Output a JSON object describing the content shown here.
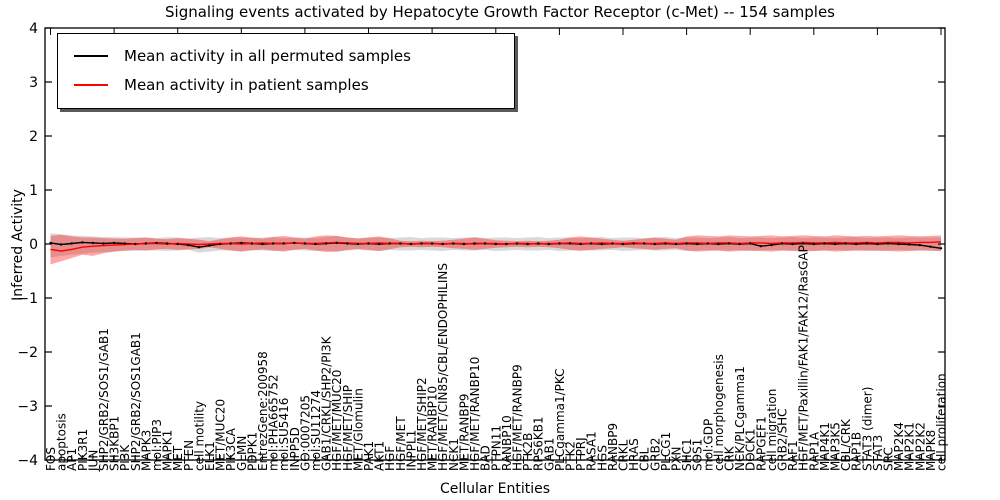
{
  "chart_data": {
    "type": "line",
    "title": "Signaling events activated by Hepatocyte Growth Factor Receptor (c-Met) -- 154 samples",
    "xlabel": "Cellular Entities",
    "ylabel": "Inferred Activity",
    "ylim": [
      -4,
      4
    ],
    "yticks": [
      "4",
      "3",
      "2",
      "1",
      "0",
      "−1",
      "−2",
      "−3",
      "−4"
    ],
    "ytick_values": [
      4,
      3,
      2,
      1,
      0,
      -1,
      -2,
      -3,
      -4
    ],
    "grid": false,
    "legend_position": "upper left",
    "categories": [
      "FOS",
      "apoptosis",
      "AP1",
      "PIK3R1",
      "JUN",
      "SHP2/GRB2/SOS1/GAB1",
      "SH3KBP1",
      "PI3K",
      "SHP2/GRB2/SOS1GAB1",
      "MAPK3",
      "mol:PIP3",
      "MAPK1",
      "MET",
      "PTEN",
      "cell motility",
      "ELK1",
      "MET/MUC20",
      "PIK3CA",
      "GLMN",
      "PDPK1",
      "EntrezGene:200958",
      "mol:PHA665752",
      "mol:SU5416",
      "INPP5D",
      "GO:0007205",
      "mol:SU11274",
      "GAB1/CRKL/SHP2/PI3K",
      "HGF/MET/MUC20",
      "HGF/MET/SHIP",
      "MET/Glomulin",
      "PAK1",
      "AKT1",
      "HGF",
      "HGF/MET",
      "INPPL1",
      "HGF/MET/SHIP2",
      "MET/RANBP10",
      "HGF/MET/CIN85/CBL/ENDOPHILINS",
      "NCK1",
      "MET/RANBP9",
      "HGF/MET/RANBP10",
      "BAD",
      "PTPN11",
      "RANBP10",
      "HGF/MET/RANBP9",
      "PTK2B",
      "RPS6KB1",
      "GAB1",
      "PLCgamma1/PKC",
      "PTK2",
      "PTPRJ",
      "RASA1",
      "HGS",
      "RANBP9",
      "CRKL",
      "HRAS",
      "CBL",
      "GRB2",
      "PLCG1",
      "PXN",
      "SHC1",
      "SOS1",
      "mol:GDP",
      "cell morphogenesis",
      "CRK",
      "NCK/PLCgamma1",
      "DOCK1",
      "RAPGEF1",
      "cell migration",
      "GRB2/SHC",
      "RAF1",
      "HGF/MET/Paxillin/FAK1/FAK12/RasGAP",
      "RAP1A",
      "MAP4K1",
      "MAP3K5",
      "CBL/CRK",
      "RAP1B",
      "STAT3 (dimer)",
      "STAT3",
      "SRC",
      "MAP2K4",
      "MAP2K1",
      "MAP2K2",
      "MAPK8",
      "cell proliferation"
    ],
    "series": [
      {
        "name": "Mean activity in all permuted samples",
        "color": "#000000",
        "values": [
          0.02,
          -0.01,
          0.01,
          0.03,
          0.02,
          0.01,
          0.02,
          0.01,
          0.0,
          0.01,
          0.02,
          0.01,
          0.0,
          -0.02,
          -0.06,
          -0.03,
          0.0,
          0.01,
          0.02,
          0.01,
          0.0,
          0.01,
          0.01,
          0.02,
          0.01,
          0.0,
          0.01,
          0.02,
          0.01,
          0.0,
          0.01,
          0.0,
          0.01,
          0.01,
          0.0,
          0.01,
          0.01,
          0.0,
          0.01,
          0.0,
          0.01,
          0.01,
          0.0,
          0.0,
          0.01,
          0.0,
          0.01,
          0.0,
          0.01,
          0.01,
          0.0,
          0.01,
          0.0,
          0.01,
          0.0,
          0.01,
          0.01,
          0.0,
          0.01,
          0.0,
          0.01,
          0.0,
          0.01,
          0.0,
          0.01,
          0.0,
          0.01,
          -0.04,
          -0.02,
          0.01,
          0.0,
          0.01,
          0.0,
          0.01,
          0.0,
          0.01,
          0.0,
          0.01,
          0.0,
          0.01,
          0.0,
          -0.01,
          -0.02,
          -0.05,
          -0.08
        ]
      },
      {
        "name": "Mean activity in patient samples",
        "color": "#ff0000",
        "values": [
          -0.1,
          -0.13,
          -0.1,
          -0.06,
          -0.04,
          -0.03,
          -0.02,
          -0.01,
          0.0,
          0.01,
          0.01,
          0.0,
          0.01,
          0.0,
          -0.01,
          0.0,
          0.01,
          0.01,
          0.0,
          0.01,
          0.02,
          0.01,
          0.01,
          0.02,
          0.01,
          0.01,
          0.02,
          0.03,
          0.02,
          0.01,
          0.01,
          0.02,
          0.01,
          0.01,
          0.0,
          0.01,
          0.01,
          0.0,
          0.01,
          0.01,
          0.0,
          0.01,
          0.01,
          0.0,
          0.01,
          0.01,
          0.0,
          0.01,
          0.01,
          0.02,
          0.01,
          0.01,
          0.02,
          0.01,
          0.01,
          0.02,
          0.01,
          0.01,
          0.02,
          0.01,
          0.02,
          0.02,
          0.01,
          0.02,
          0.02,
          0.01,
          0.02,
          0.02,
          0.01,
          0.02,
          0.02,
          0.03,
          0.02,
          0.02,
          0.03,
          0.02,
          0.02,
          0.03,
          0.02,
          0.03,
          0.03,
          0.02,
          0.03,
          0.03,
          0.04
        ]
      }
    ],
    "bands": [
      {
        "name": "permuted samples range",
        "color": "rgba(0,0,0,0.15)",
        "upper": [
          0.2,
          0.18,
          0.16,
          0.15,
          0.14,
          0.13,
          0.13,
          0.12,
          0.12,
          0.12,
          0.11,
          0.13,
          0.12,
          0.1,
          0.12,
          0.13,
          0.11,
          0.12,
          0.12,
          0.11,
          0.12,
          0.13,
          0.11,
          0.12,
          0.12,
          0.11,
          0.13,
          0.15,
          0.12,
          0.11,
          0.12,
          0.12,
          0.11,
          0.12,
          0.13,
          0.11,
          0.12,
          0.12,
          0.11,
          0.12,
          0.13,
          0.11,
          0.12,
          0.12,
          0.11,
          0.12,
          0.13,
          0.11,
          0.12,
          0.12,
          0.11,
          0.12,
          0.13,
          0.11,
          0.12,
          0.12,
          0.11,
          0.12,
          0.13,
          0.11,
          0.12,
          0.12,
          0.11,
          0.12,
          0.13,
          0.11,
          0.12,
          0.12,
          0.11,
          0.12,
          0.13,
          0.11,
          0.12,
          0.12,
          0.11,
          0.12,
          0.13,
          0.11,
          0.12,
          0.12,
          0.11,
          0.12,
          0.12,
          0.12,
          0.12
        ],
        "lower": [
          -0.25,
          -0.22,
          -0.2,
          -0.18,
          -0.16,
          -0.15,
          -0.14,
          -0.13,
          -0.13,
          -0.12,
          -0.12,
          -0.13,
          -0.12,
          -0.11,
          -0.16,
          -0.14,
          -0.12,
          -0.12,
          -0.13,
          -0.11,
          -0.12,
          -0.13,
          -0.12,
          -0.11,
          -0.12,
          -0.13,
          -0.12,
          -0.14,
          -0.12,
          -0.11,
          -0.12,
          -0.13,
          -0.11,
          -0.12,
          -0.12,
          -0.11,
          -0.12,
          -0.13,
          -0.11,
          -0.12,
          -0.12,
          -0.11,
          -0.13,
          -0.12,
          -0.11,
          -0.12,
          -0.12,
          -0.11,
          -0.13,
          -0.12,
          -0.11,
          -0.12,
          -0.12,
          -0.11,
          -0.13,
          -0.12,
          -0.11,
          -0.12,
          -0.12,
          -0.11,
          -0.13,
          -0.12,
          -0.11,
          -0.12,
          -0.12,
          -0.11,
          -0.13,
          -0.12,
          -0.11,
          -0.12,
          -0.12,
          -0.11,
          -0.13,
          -0.12,
          -0.11,
          -0.12,
          -0.12,
          -0.11,
          -0.13,
          -0.12,
          -0.11,
          -0.12,
          -0.12,
          -0.13,
          -0.13
        ]
      },
      {
        "name": "patient samples range",
        "color": "rgba(255,0,0,0.35)",
        "upper": [
          0.15,
          0.17,
          0.14,
          0.12,
          0.12,
          0.11,
          0.1,
          0.1,
          0.11,
          0.12,
          0.1,
          0.09,
          0.11,
          0.1,
          0.08,
          0.05,
          0.09,
          0.12,
          0.14,
          0.12,
          0.1,
          0.13,
          0.15,
          0.12,
          0.1,
          0.14,
          0.16,
          0.15,
          0.12,
          0.1,
          0.12,
          0.14,
          0.11,
          0.06,
          0.05,
          0.06,
          0.05,
          0.06,
          0.08,
          0.1,
          0.12,
          0.1,
          0.07,
          0.06,
          0.05,
          0.06,
          0.05,
          0.06,
          0.08,
          0.12,
          0.14,
          0.12,
          0.1,
          0.08,
          0.06,
          0.08,
          0.1,
          0.12,
          0.1,
          0.08,
          0.14,
          0.16,
          0.15,
          0.14,
          0.16,
          0.15,
          0.14,
          0.15,
          0.16,
          0.14,
          0.15,
          0.16,
          0.15,
          0.14,
          0.16,
          0.15,
          0.14,
          0.15,
          0.14,
          0.15,
          0.16,
          0.15,
          0.14,
          0.15,
          0.16
        ],
        "lower": [
          -0.38,
          -0.32,
          -0.26,
          -0.2,
          -0.22,
          -0.17,
          -0.14,
          -0.12,
          -0.11,
          -0.12,
          -0.1,
          -0.09,
          -0.11,
          -0.1,
          -0.09,
          -0.06,
          -0.09,
          -0.12,
          -0.14,
          -0.12,
          -0.1,
          -0.12,
          -0.14,
          -0.11,
          -0.09,
          -0.12,
          -0.15,
          -0.14,
          -0.11,
          -0.09,
          -0.11,
          -0.13,
          -0.1,
          -0.06,
          -0.05,
          -0.06,
          -0.05,
          -0.06,
          -0.08,
          -0.09,
          -0.11,
          -0.09,
          -0.07,
          -0.06,
          -0.05,
          -0.06,
          -0.05,
          -0.06,
          -0.08,
          -0.11,
          -0.13,
          -0.11,
          -0.09,
          -0.08,
          -0.06,
          -0.08,
          -0.09,
          -0.11,
          -0.09,
          -0.08,
          -0.12,
          -0.14,
          -0.13,
          -0.12,
          -0.14,
          -0.13,
          -0.12,
          -0.13,
          -0.14,
          -0.12,
          -0.13,
          -0.14,
          -0.13,
          -0.12,
          -0.14,
          -0.13,
          -0.12,
          -0.13,
          -0.12,
          -0.13,
          -0.14,
          -0.13,
          -0.12,
          -0.12,
          -0.13
        ]
      }
    ]
  },
  "legend": {
    "items": [
      {
        "label": "Mean activity in all permuted samples",
        "color": "#000000"
      },
      {
        "label": "Mean activity in patient samples",
        "color": "#ff0000"
      }
    ]
  }
}
